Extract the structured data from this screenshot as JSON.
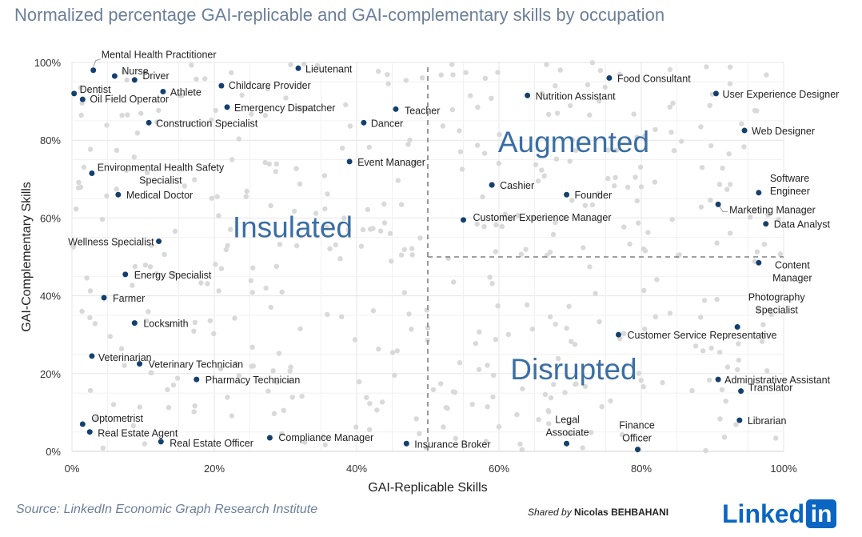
{
  "header": {
    "title": "Normalized percentage GAI-replicable and GAI-complementary skills by occupation"
  },
  "footer": {
    "source": "Source: LinkedIn Economic Graph Research Institute",
    "shared_prefix": "Shared by",
    "shared_name": "Nicolas BEHBAHANI",
    "logo_text": "Linked",
    "logo_box": "in"
  },
  "chart_data": {
    "type": "scatter",
    "xlabel": "GAI-Replicable Skills",
    "ylabel": "GAI-Complementary Skills",
    "xlim": [
      0,
      100
    ],
    "ylim": [
      0,
      100
    ],
    "xticks": [
      "0%",
      "20%",
      "40%",
      "60%",
      "80%",
      "100%"
    ],
    "yticks": [
      "0%",
      "20%",
      "40%",
      "60%",
      "80%",
      "100%"
    ],
    "grid": true,
    "divider_x": 50,
    "divider_y": 50,
    "colors": {
      "highlight": "#14406e",
      "background_point": "#d9d9d9",
      "quadrant_label": "#3a6ea5",
      "grid": "#e6e6e6",
      "divider": "#808080"
    },
    "quadrant_labels": [
      {
        "text": "Insulated",
        "x": 31,
        "y": 55
      },
      {
        "text": "Augmented",
        "x": 70.5,
        "y": 77
      },
      {
        "text": "Disrupted",
        "x": 70.5,
        "y": 18.5
      }
    ],
    "highlighted": [
      {
        "label": "Mental Health Practitioner",
        "x": 3,
        "y": 98
      },
      {
        "label": "Nurse",
        "x": 6,
        "y": 96.5
      },
      {
        "label": "Driver",
        "x": 8.8,
        "y": 95.5
      },
      {
        "label": "Dentist",
        "x": 0.3,
        "y": 92
      },
      {
        "label": "Athlete",
        "x": 12.8,
        "y": 92.5
      },
      {
        "label": "Oil Field Operator",
        "x": 1.5,
        "y": 90.5
      },
      {
        "label": "Childcare Provider",
        "x": 21,
        "y": 94
      },
      {
        "label": "Lieutenant",
        "x": 31.8,
        "y": 98.5
      },
      {
        "label": "Emergency Dispatcher",
        "x": 21.8,
        "y": 88.5
      },
      {
        "label": "Teacher",
        "x": 45.5,
        "y": 88
      },
      {
        "label": "Dancer",
        "x": 41,
        "y": 84.5
      },
      {
        "label": "Construction Specialist",
        "x": 10.8,
        "y": 84.5
      },
      {
        "label": "Food Consultant",
        "x": 75.5,
        "y": 96
      },
      {
        "label": "Nutrition Assistant",
        "x": 64,
        "y": 91.5
      },
      {
        "label": "User Experience Designer",
        "x": 90.5,
        "y": 92
      },
      {
        "label": "Web Designer",
        "x": 94.5,
        "y": 82.5
      },
      {
        "label": "Event Manager",
        "x": 39,
        "y": 74.5
      },
      {
        "label": "Environmental Health Safety Specialist",
        "x": 2.8,
        "y": 71.5
      },
      {
        "label": "Medical Doctor",
        "x": 6.5,
        "y": 66
      },
      {
        "label": "Cashier",
        "x": 59,
        "y": 68.5
      },
      {
        "label": "Founder",
        "x": 69.5,
        "y": 66
      },
      {
        "label": "Software Engineer",
        "x": 96.5,
        "y": 66.5
      },
      {
        "label": "Marketing Manager",
        "x": 90.8,
        "y": 63.5
      },
      {
        "label": "Data Analyst",
        "x": 97.5,
        "y": 58.5
      },
      {
        "label": "Customer Experience Manager",
        "x": 55,
        "y": 59.5
      },
      {
        "label": "Wellness Specialist",
        "x": 12.2,
        "y": 54
      },
      {
        "label": "Content Manager",
        "x": 96.5,
        "y": 48.5
      },
      {
        "label": "Energy Specialist",
        "x": 7.5,
        "y": 45.5
      },
      {
        "label": "Farmer",
        "x": 4.5,
        "y": 39.5
      },
      {
        "label": "Locksmith",
        "x": 8.8,
        "y": 33
      },
      {
        "label": "Photography Specialist",
        "x": 93.5,
        "y": 32
      },
      {
        "label": "Customer Service Representative",
        "x": 76.8,
        "y": 30
      },
      {
        "label": "Veterinarian",
        "x": 2.8,
        "y": 24.5
      },
      {
        "label": "Veterinary Technician",
        "x": 9.5,
        "y": 22.5
      },
      {
        "label": "Pharmacy Technician",
        "x": 17.5,
        "y": 18.5
      },
      {
        "label": "Administrative Assistant",
        "x": 90.8,
        "y": 18.5
      },
      {
        "label": "Translator",
        "x": 94,
        "y": 15.5
      },
      {
        "label": "Librarian",
        "x": 93.8,
        "y": 8
      },
      {
        "label": "Optometrist",
        "x": 1.5,
        "y": 7
      },
      {
        "label": "Real Estate Agent",
        "x": 2.5,
        "y": 5
      },
      {
        "label": "Real Estate Officer",
        "x": 12.5,
        "y": 2.5
      },
      {
        "label": "Compliance Manager",
        "x": 27.8,
        "y": 3.5
      },
      {
        "label": "Insurance Broker",
        "x": 47,
        "y": 2
      },
      {
        "label": "Legal Associate",
        "x": 69.5,
        "y": 2
      },
      {
        "label": "Finance Officer",
        "x": 79.5,
        "y": 0.5
      }
    ]
  }
}
